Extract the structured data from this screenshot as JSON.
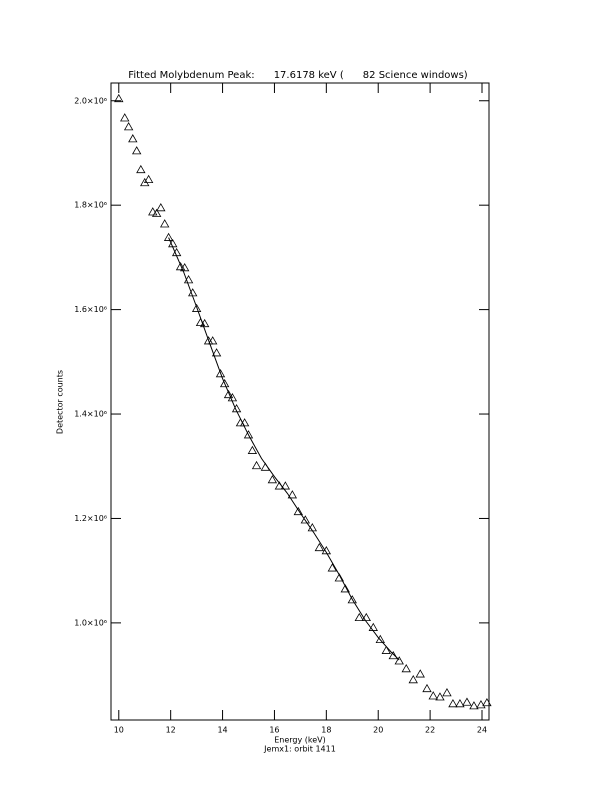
{
  "chart_data": {
    "type": "scatter",
    "title": "Fitted Molybdenum Peak:      17.6178 keV (      82 Science windows)",
    "xlabel": "Energy (keV)",
    "ylabel": "Detector counts",
    "subtitle": "Jemx1: orbit 1411",
    "xlim": [
      9.7,
      24.27
    ],
    "ylim": [
      814000,
      2034000
    ],
    "xticks": [
      10,
      12,
      14,
      16,
      18,
      20,
      22,
      24
    ],
    "yticks": [
      {
        "value": 1000000,
        "label": "1.0×10⁶"
      },
      {
        "value": 1200000,
        "label": "1.2×10⁶"
      },
      {
        "value": 1400000,
        "label": "1.4×10⁶"
      },
      {
        "value": 1600000,
        "label": "1.6×10⁶"
      },
      {
        "value": 1800000,
        "label": "1.8×10⁶"
      },
      {
        "value": 2000000,
        "label": "2.0×10⁶"
      }
    ],
    "grid": false,
    "series": [
      {
        "color": "#000000",
        "marker": "triangle",
        "x": [
          10.0,
          10.23,
          10.38,
          10.54,
          10.69,
          10.85,
          11.0,
          11.15,
          11.31,
          11.46,
          11.62,
          11.77,
          11.92,
          12.08,
          12.23,
          12.38,
          12.54,
          12.69,
          12.85,
          13.0,
          13.15,
          13.31,
          13.46,
          13.62,
          13.77,
          13.92,
          14.08,
          14.23,
          14.38,
          14.54,
          14.69,
          14.85,
          15.0,
          15.15,
          15.31,
          15.65,
          15.92,
          16.19,
          16.42,
          16.69,
          16.92,
          17.19,
          17.46,
          17.73,
          18.0,
          18.23,
          18.5,
          18.73,
          19.0,
          19.27,
          19.54,
          19.81,
          20.08,
          20.31,
          20.58,
          20.81,
          21.08,
          21.35,
          21.62,
          21.88,
          22.12,
          22.38,
          22.65,
          22.88,
          23.15,
          23.42,
          23.69,
          23.96,
          24.19
        ],
        "values": [
          2004000,
          1967000,
          1950000,
          1927000,
          1904000,
          1868000,
          1843000,
          1849000,
          1787000,
          1784000,
          1795000,
          1764000,
          1738000,
          1726000,
          1709000,
          1682000,
          1680000,
          1657000,
          1632000,
          1602000,
          1575000,
          1573000,
          1540000,
          1540000,
          1517000,
          1477000,
          1458000,
          1437000,
          1431000,
          1410000,
          1383000,
          1383000,
          1360000,
          1330000,
          1301000,
          1298000,
          1274000,
          1262000,
          1262000,
          1245000,
          1213000,
          1197000,
          1182000,
          1144000,
          1138000,
          1105000,
          1086000,
          1065000,
          1044000,
          1010000,
          1010000,
          991000,
          968000,
          947000,
          937000,
          927000,
          912000,
          891000,
          902000,
          874000,
          860000,
          858000,
          866000,
          845000,
          845000,
          848000,
          841000,
          843000,
          847000
        ]
      },
      {
        "color": "#000000",
        "marker": "line",
        "x": [
          11.92,
          12.5,
          13.0,
          13.5,
          14.0,
          14.5,
          15.0,
          15.5,
          16.0,
          16.5,
          17.0,
          17.5,
          18.0,
          18.5,
          19.0,
          19.5,
          20.0,
          20.5,
          20.81
        ],
        "values": [
          1738000,
          1672000,
          1605000,
          1536000,
          1468000,
          1410000,
          1360000,
          1315000,
          1280000,
          1248000,
          1210000,
          1174000,
          1135000,
          1092000,
          1045000,
          1005000,
          972000,
          944000,
          929000
        ]
      }
    ]
  }
}
